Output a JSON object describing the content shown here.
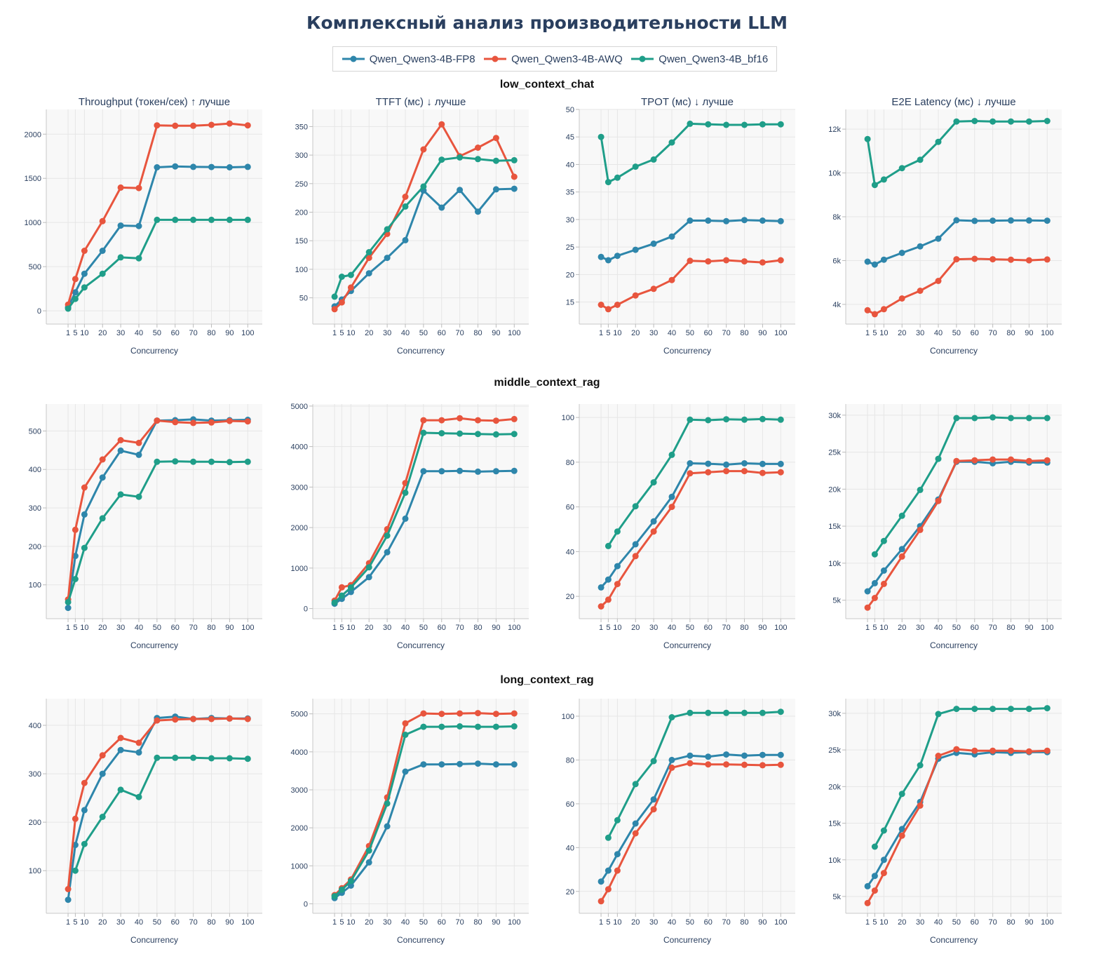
{
  "title": "Комплексный анализ производительности LLM",
  "legend": [
    {
      "name": "Qwen_Qwen3-4B-FP8",
      "color": "#2e86ab"
    },
    {
      "name": "Qwen_Qwen3-4B-AWQ",
      "color": "#e8553e"
    },
    {
      "name": "Qwen_Qwen3-4B_bf16",
      "color": "#1f9e89"
    }
  ],
  "row_titles": [
    "low_context_chat",
    "middle_context_rag",
    "long_context_rag"
  ],
  "column_titles": [
    "Throughput (токен/сек) ↑ лучше",
    "TTFT (мс) ↓ лучше",
    "TPOT (мс) ↓ лучше",
    "E2E Latency (мс) ↓ лучше"
  ],
  "x_axis_label": "Concurrency",
  "chart_data": [
    {
      "type": "line",
      "row": 0,
      "col": 0,
      "xlabel": "Concurrency",
      "x": [
        1,
        5,
        10,
        20,
        30,
        40,
        50,
        60,
        70,
        80,
        90,
        100
      ],
      "yticks": [
        0,
        500,
        1000,
        1500,
        2000
      ],
      "ytick_labels": [
        "0",
        "500",
        "1000",
        "1500",
        "2000"
      ],
      "ylim": [
        -150,
        2280
      ],
      "series": [
        {
          "name": "Qwen_Qwen3-4B-FP8",
          "values": [
            40,
            210,
            420,
            680,
            965,
            960,
            1625,
            1635,
            1630,
            1628,
            1625,
            1630
          ]
        },
        {
          "name": "Qwen_Qwen3-4B-AWQ",
          "values": [
            70,
            360,
            680,
            1015,
            1395,
            1390,
            2100,
            2095,
            2095,
            2105,
            2120,
            2100
          ]
        },
        {
          "name": "Qwen_Qwen3-4B_bf16",
          "values": [
            25,
            135,
            265,
            420,
            605,
            595,
            1030,
            1030,
            1030,
            1030,
            1030,
            1030
          ]
        }
      ]
    },
    {
      "type": "line",
      "row": 0,
      "col": 1,
      "xlabel": "Concurrency",
      "x": [
        1,
        5,
        10,
        20,
        30,
        40,
        50,
        60,
        70,
        80,
        90,
        100
      ],
      "yticks": [
        50,
        100,
        150,
        200,
        250,
        300,
        350
      ],
      "ytick_labels": [
        "50",
        "100",
        "150",
        "200",
        "250",
        "300",
        "350"
      ],
      "ylim": [
        4,
        380
      ],
      "series": [
        {
          "name": "Qwen_Qwen3-4B-FP8",
          "values": [
            35,
            47,
            62,
            93,
            120,
            151,
            238,
            208,
            239,
            201,
            240,
            241
          ]
        },
        {
          "name": "Qwen_Qwen3-4B-AWQ",
          "values": [
            30,
            42,
            68,
            120,
            162,
            227,
            310,
            354,
            298,
            313,
            330,
            262
          ]
        },
        {
          "name": "Qwen_Qwen3-4B_bf16",
          "values": [
            52,
            87,
            90,
            130,
            170,
            210,
            245,
            292,
            296,
            293,
            290,
            291
          ]
        }
      ]
    },
    {
      "type": "line",
      "row": 0,
      "col": 2,
      "xlabel": "Concurrency",
      "x": [
        1,
        5,
        10,
        20,
        30,
        40,
        50,
        60,
        70,
        80,
        90,
        100
      ],
      "yticks": [
        15,
        20,
        25,
        30,
        35,
        40,
        45,
        50
      ],
      "ytick_labels": [
        "15",
        "20",
        "25",
        "30",
        "35",
        "40",
        "45",
        "50"
      ],
      "ylim": [
        11,
        50
      ],
      "series": [
        {
          "name": "Qwen_Qwen3-4B-FP8",
          "values": [
            23.2,
            22.6,
            23.4,
            24.5,
            25.6,
            26.9,
            29.8,
            29.8,
            29.7,
            29.9,
            29.8,
            29.7
          ]
        },
        {
          "name": "Qwen_Qwen3-4B-AWQ",
          "values": [
            14.5,
            13.7,
            14.5,
            16.2,
            17.4,
            19.0,
            22.5,
            22.4,
            22.6,
            22.4,
            22.2,
            22.6
          ]
        },
        {
          "name": "Qwen_Qwen3-4B_bf16",
          "values": [
            45.0,
            36.8,
            37.6,
            39.6,
            40.9,
            44.0,
            47.4,
            47.3,
            47.2,
            47.2,
            47.3,
            47.3
          ]
        }
      ]
    },
    {
      "type": "line",
      "row": 0,
      "col": 3,
      "xlabel": "Concurrency",
      "x": [
        1,
        5,
        10,
        20,
        30,
        40,
        50,
        60,
        70,
        80,
        90,
        100
      ],
      "yticks": [
        4000,
        6000,
        8000,
        10000,
        12000
      ],
      "ytick_labels": [
        "4k",
        "6k",
        "8k",
        "10k",
        "12k"
      ],
      "ylim": [
        3100,
        12900
      ],
      "series": [
        {
          "name": "Qwen_Qwen3-4B-FP8",
          "values": [
            5950,
            5820,
            6040,
            6350,
            6650,
            7000,
            7840,
            7810,
            7820,
            7830,
            7830,
            7820
          ]
        },
        {
          "name": "Qwen_Qwen3-4B-AWQ",
          "values": [
            3730,
            3550,
            3780,
            4270,
            4620,
            5070,
            6060,
            6080,
            6060,
            6040,
            6010,
            6050
          ]
        },
        {
          "name": "Qwen_Qwen3-4B_bf16",
          "values": [
            11550,
            9450,
            9700,
            10220,
            10600,
            11420,
            12350,
            12370,
            12350,
            12350,
            12350,
            12370
          ]
        }
      ]
    },
    {
      "type": "line",
      "row": 1,
      "col": 0,
      "xlabel": "Concurrency",
      "x": [
        1,
        5,
        10,
        20,
        30,
        40,
        50,
        60,
        70,
        80,
        90,
        100
      ],
      "yticks": [
        100,
        200,
        300,
        400,
        500
      ],
      "ytick_labels": [
        "100",
        "200",
        "300",
        "400",
        "500"
      ],
      "ylim": [
        12,
        570
      ],
      "series": [
        {
          "name": "Qwen_Qwen3-4B-FP8",
          "values": [
            40,
            175,
            283,
            379,
            449,
            438,
            527,
            528,
            530,
            527,
            528,
            529
          ]
        },
        {
          "name": "Qwen_Qwen3-4B-AWQ",
          "values": [
            62,
            243,
            353,
            426,
            476,
            469,
            527,
            523,
            521,
            522,
            526,
            525
          ]
        },
        {
          "name": "Qwen_Qwen3-4B_bf16",
          "values": [
            55,
            115,
            196,
            273,
            335,
            329,
            420,
            421,
            420,
            420,
            419,
            420
          ]
        }
      ]
    },
    {
      "type": "line",
      "row": 1,
      "col": 1,
      "xlabel": "Concurrency",
      "x": [
        1,
        5,
        10,
        20,
        30,
        40,
        50,
        60,
        70,
        80,
        90,
        100
      ],
      "yticks": [
        0,
        1000,
        2000,
        3000,
        4000,
        5000
      ],
      "ytick_labels": [
        "0",
        "1000",
        "2000",
        "3000",
        "4000",
        "5000"
      ],
      "ylim": [
        -250,
        5050
      ],
      "series": [
        {
          "name": "Qwen_Qwen3-4B-FP8",
          "values": [
            120,
            240,
            410,
            775,
            1390,
            2220,
            3390,
            3390,
            3400,
            3380,
            3390,
            3400
          ]
        },
        {
          "name": "Qwen_Qwen3-4B-AWQ",
          "values": [
            195,
            525,
            580,
            1120,
            1960,
            3100,
            4650,
            4650,
            4700,
            4650,
            4640,
            4680
          ]
        },
        {
          "name": "Qwen_Qwen3-4B_bf16",
          "values": [
            150,
            320,
            520,
            1020,
            1800,
            2860,
            4340,
            4330,
            4320,
            4310,
            4300,
            4310
          ]
        }
      ]
    },
    {
      "type": "line",
      "row": 1,
      "col": 2,
      "xlabel": "Concurrency",
      "x": [
        1,
        5,
        10,
        20,
        30,
        40,
        50,
        60,
        70,
        80,
        90,
        100
      ],
      "yticks": [
        20,
        40,
        60,
        80,
        100
      ],
      "ytick_labels": [
        "20",
        "40",
        "60",
        "80",
        "100"
      ],
      "ylim": [
        10,
        106
      ],
      "series": [
        {
          "name": "Qwen_Qwen3-4B-FP8",
          "values": [
            24.0,
            27.5,
            33.5,
            43.3,
            53.5,
            64.5,
            79.5,
            79.3,
            78.9,
            79.5,
            79.2,
            79.2
          ]
        },
        {
          "name": "Qwen_Qwen3-4B-AWQ",
          "values": [
            15.5,
            18.5,
            25.5,
            38.0,
            49.0,
            60.0,
            75.0,
            75.5,
            76.0,
            76.0,
            75.2,
            75.5
          ]
        },
        {
          "name": "Qwen_Qwen3-4B_bf16",
          "values": [
            null,
            42.5,
            49.0,
            60.3,
            71.0,
            83.3,
            99.0,
            98.8,
            99.2,
            99.0,
            99.3,
            99.0
          ]
        }
      ]
    },
    {
      "type": "line",
      "row": 1,
      "col": 3,
      "xlabel": "Concurrency",
      "x": [
        1,
        5,
        10,
        20,
        30,
        40,
        50,
        60,
        70,
        80,
        90,
        100
      ],
      "yticks": [
        5000,
        10000,
        15000,
        20000,
        25000,
        30000
      ],
      "ytick_labels": [
        "5k",
        "10k",
        "15k",
        "20k",
        "25k",
        "30k"
      ],
      "ylim": [
        2500,
        31500
      ],
      "series": [
        {
          "name": "Qwen_Qwen3-4B-FP8",
          "values": [
            6200,
            7300,
            9000,
            11900,
            15000,
            18600,
            23700,
            23700,
            23500,
            23700,
            23600,
            23600
          ]
        },
        {
          "name": "Qwen_Qwen3-4B-AWQ",
          "values": [
            4000,
            5300,
            7200,
            10900,
            14500,
            18400,
            23800,
            23900,
            24000,
            24000,
            23800,
            23900
          ]
        },
        {
          "name": "Qwen_Qwen3-4B_bf16",
          "values": [
            null,
            11200,
            13000,
            16400,
            19900,
            24100,
            29600,
            29600,
            29700,
            29600,
            29600,
            29600
          ]
        }
      ]
    },
    {
      "type": "line",
      "row": 2,
      "col": 0,
      "xlabel": "Concurrency",
      "x": [
        1,
        5,
        10,
        20,
        30,
        40,
        50,
        60,
        70,
        80,
        90,
        100
      ],
      "yticks": [
        100,
        200,
        300,
        400
      ],
      "ytick_labels": [
        "100",
        "200",
        "300",
        "400"
      ],
      "ylim": [
        12,
        455
      ],
      "series": [
        {
          "name": "Qwen_Qwen3-4B-FP8",
          "values": [
            40,
            153,
            225,
            300,
            349,
            344,
            415,
            418,
            413,
            415,
            414,
            414
          ]
        },
        {
          "name": "Qwen_Qwen3-4B-AWQ",
          "values": [
            62,
            207,
            281,
            338,
            374,
            364,
            410,
            412,
            413,
            413,
            414,
            413
          ]
        },
        {
          "name": "Qwen_Qwen3-4B_bf16",
          "values": [
            null,
            100,
            155,
            211,
            267,
            252,
            333,
            333,
            333,
            332,
            332,
            331
          ]
        }
      ]
    },
    {
      "type": "line",
      "row": 2,
      "col": 1,
      "xlabel": "Concurrency",
      "x": [
        1,
        5,
        10,
        20,
        30,
        40,
        50,
        60,
        70,
        80,
        90,
        100
      ],
      "yticks": [
        0,
        1000,
        2000,
        3000,
        4000,
        5000
      ],
      "ytick_labels": [
        "0",
        "1000",
        "2000",
        "3000",
        "4000",
        "5000"
      ],
      "ylim": [
        -250,
        5400
      ],
      "series": [
        {
          "name": "Qwen_Qwen3-4B-FP8",
          "values": [
            150,
            290,
            480,
            1090,
            2040,
            3480,
            3670,
            3670,
            3680,
            3690,
            3670,
            3670
          ]
        },
        {
          "name": "Qwen_Qwen3-4B-AWQ",
          "values": [
            230,
            410,
            640,
            1520,
            2800,
            4750,
            5010,
            5000,
            5010,
            5020,
            5000,
            5010
          ]
        },
        {
          "name": "Qwen_Qwen3-4B_bf16",
          "values": [
            200,
            370,
            600,
            1400,
            2640,
            4450,
            4660,
            4660,
            4670,
            4660,
            4660,
            4670
          ]
        }
      ]
    },
    {
      "type": "line",
      "row": 2,
      "col": 2,
      "xlabel": "Concurrency",
      "x": [
        1,
        5,
        10,
        20,
        30,
        40,
        50,
        60,
        70,
        80,
        90,
        100
      ],
      "yticks": [
        20,
        40,
        60,
        80,
        100
      ],
      "ytick_labels": [
        "20",
        "40",
        "60",
        "80",
        "100"
      ],
      "ylim": [
        10,
        108
      ],
      "series": [
        {
          "name": "Qwen_Qwen3-4B-FP8",
          "values": [
            24.5,
            29.5,
            37.0,
            51.0,
            62.0,
            80.0,
            82.0,
            81.5,
            82.5,
            82.0,
            82.3,
            82.3
          ]
        },
        {
          "name": "Qwen_Qwen3-4B-AWQ",
          "values": [
            15.5,
            21.0,
            29.5,
            46.5,
            57.5,
            76.5,
            78.5,
            78.0,
            78.0,
            77.8,
            77.6,
            77.8
          ]
        },
        {
          "name": "Qwen_Qwen3-4B_bf16",
          "values": [
            null,
            44.5,
            52.5,
            69.0,
            79.5,
            99.5,
            101.5,
            101.5,
            101.5,
            101.5,
            101.5,
            102.0
          ]
        }
      ]
    },
    {
      "type": "line",
      "row": 2,
      "col": 3,
      "xlabel": "Concurrency",
      "x": [
        1,
        5,
        10,
        20,
        30,
        40,
        50,
        60,
        70,
        80,
        90,
        100
      ],
      "yticks": [
        5000,
        10000,
        15000,
        20000,
        25000,
        30000
      ],
      "ytick_labels": [
        "5k",
        "10k",
        "15k",
        "20k",
        "25k",
        "30k"
      ],
      "ylim": [
        2700,
        32000
      ],
      "series": [
        {
          "name": "Qwen_Qwen3-4B-FP8",
          "values": [
            6400,
            7800,
            10000,
            14200,
            17900,
            23800,
            24600,
            24400,
            24700,
            24600,
            24700,
            24700
          ]
        },
        {
          "name": "Qwen_Qwen3-4B-AWQ",
          "values": [
            4100,
            5800,
            8200,
            13300,
            17400,
            24200,
            25100,
            24900,
            24900,
            24900,
            24800,
            24900
          ]
        },
        {
          "name": "Qwen_Qwen3-4B_bf16",
          "values": [
            null,
            11800,
            14000,
            19000,
            22900,
            29900,
            30600,
            30600,
            30600,
            30600,
            30600,
            30700
          ]
        }
      ]
    }
  ]
}
